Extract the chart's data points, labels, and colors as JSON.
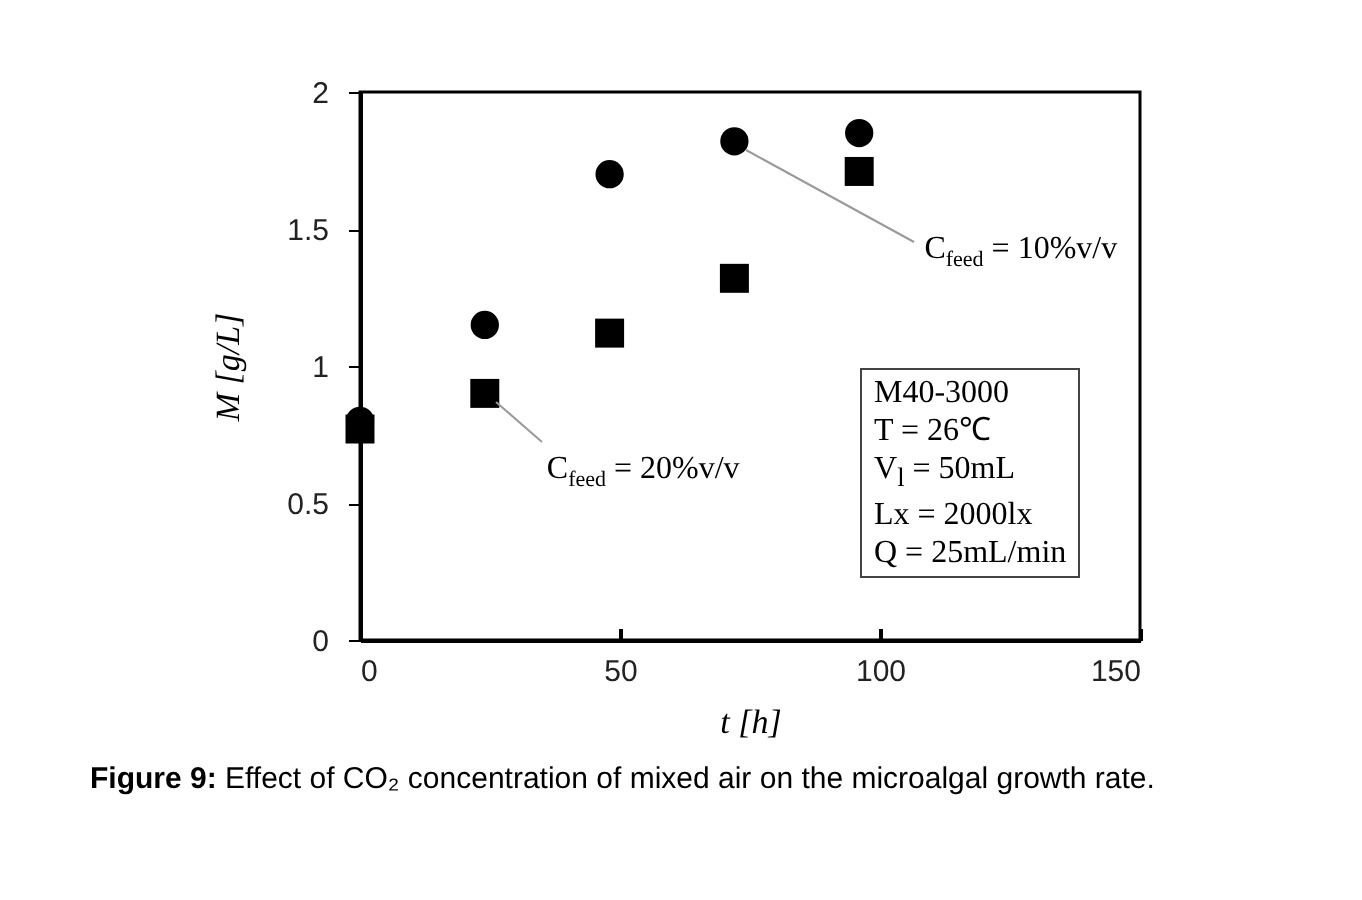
{
  "chart_data": {
    "type": "scatter",
    "title": "Figure 9: Effect of CO₂ concentration of mixed air on the microalgal growth rate.",
    "xlabel": "t [h]",
    "ylabel": "M  [g/L]",
    "xlim": [
      0,
      150
    ],
    "xticks": [
      0,
      50,
      100,
      150
    ],
    "ylim": [
      0,
      2
    ],
    "yticks": [
      0,
      0.5,
      1,
      1.5,
      2
    ],
    "grid": false,
    "series": [
      {
        "color": "#000000",
        "marker": "circle",
        "x": [
          0,
          24,
          48,
          72,
          96
        ],
        "values": [
          0.8,
          1.15,
          1.7,
          1.82,
          1.85
        ]
      },
      {
        "color": "#000000",
        "marker": "square",
        "x": [
          0,
          24,
          48,
          72,
          96
        ],
        "values": [
          0.77,
          0.9,
          1.12,
          1.32,
          1.71
        ]
      }
    ],
    "annotations": [
      {
        "text": "C$_{feed}$ = 10%v/v",
        "x": 72,
        "y": 1.82
      },
      {
        "text": "C$_{feed}$ = 20%v/v",
        "x": 24,
        "y": 0.9
      },
      "M40-3000",
      "T  = 26℃",
      "V$_{l}$ = 50mL",
      "Lx = 2000lx",
      "Q  = 25mL/min"
    ]
  }
}
